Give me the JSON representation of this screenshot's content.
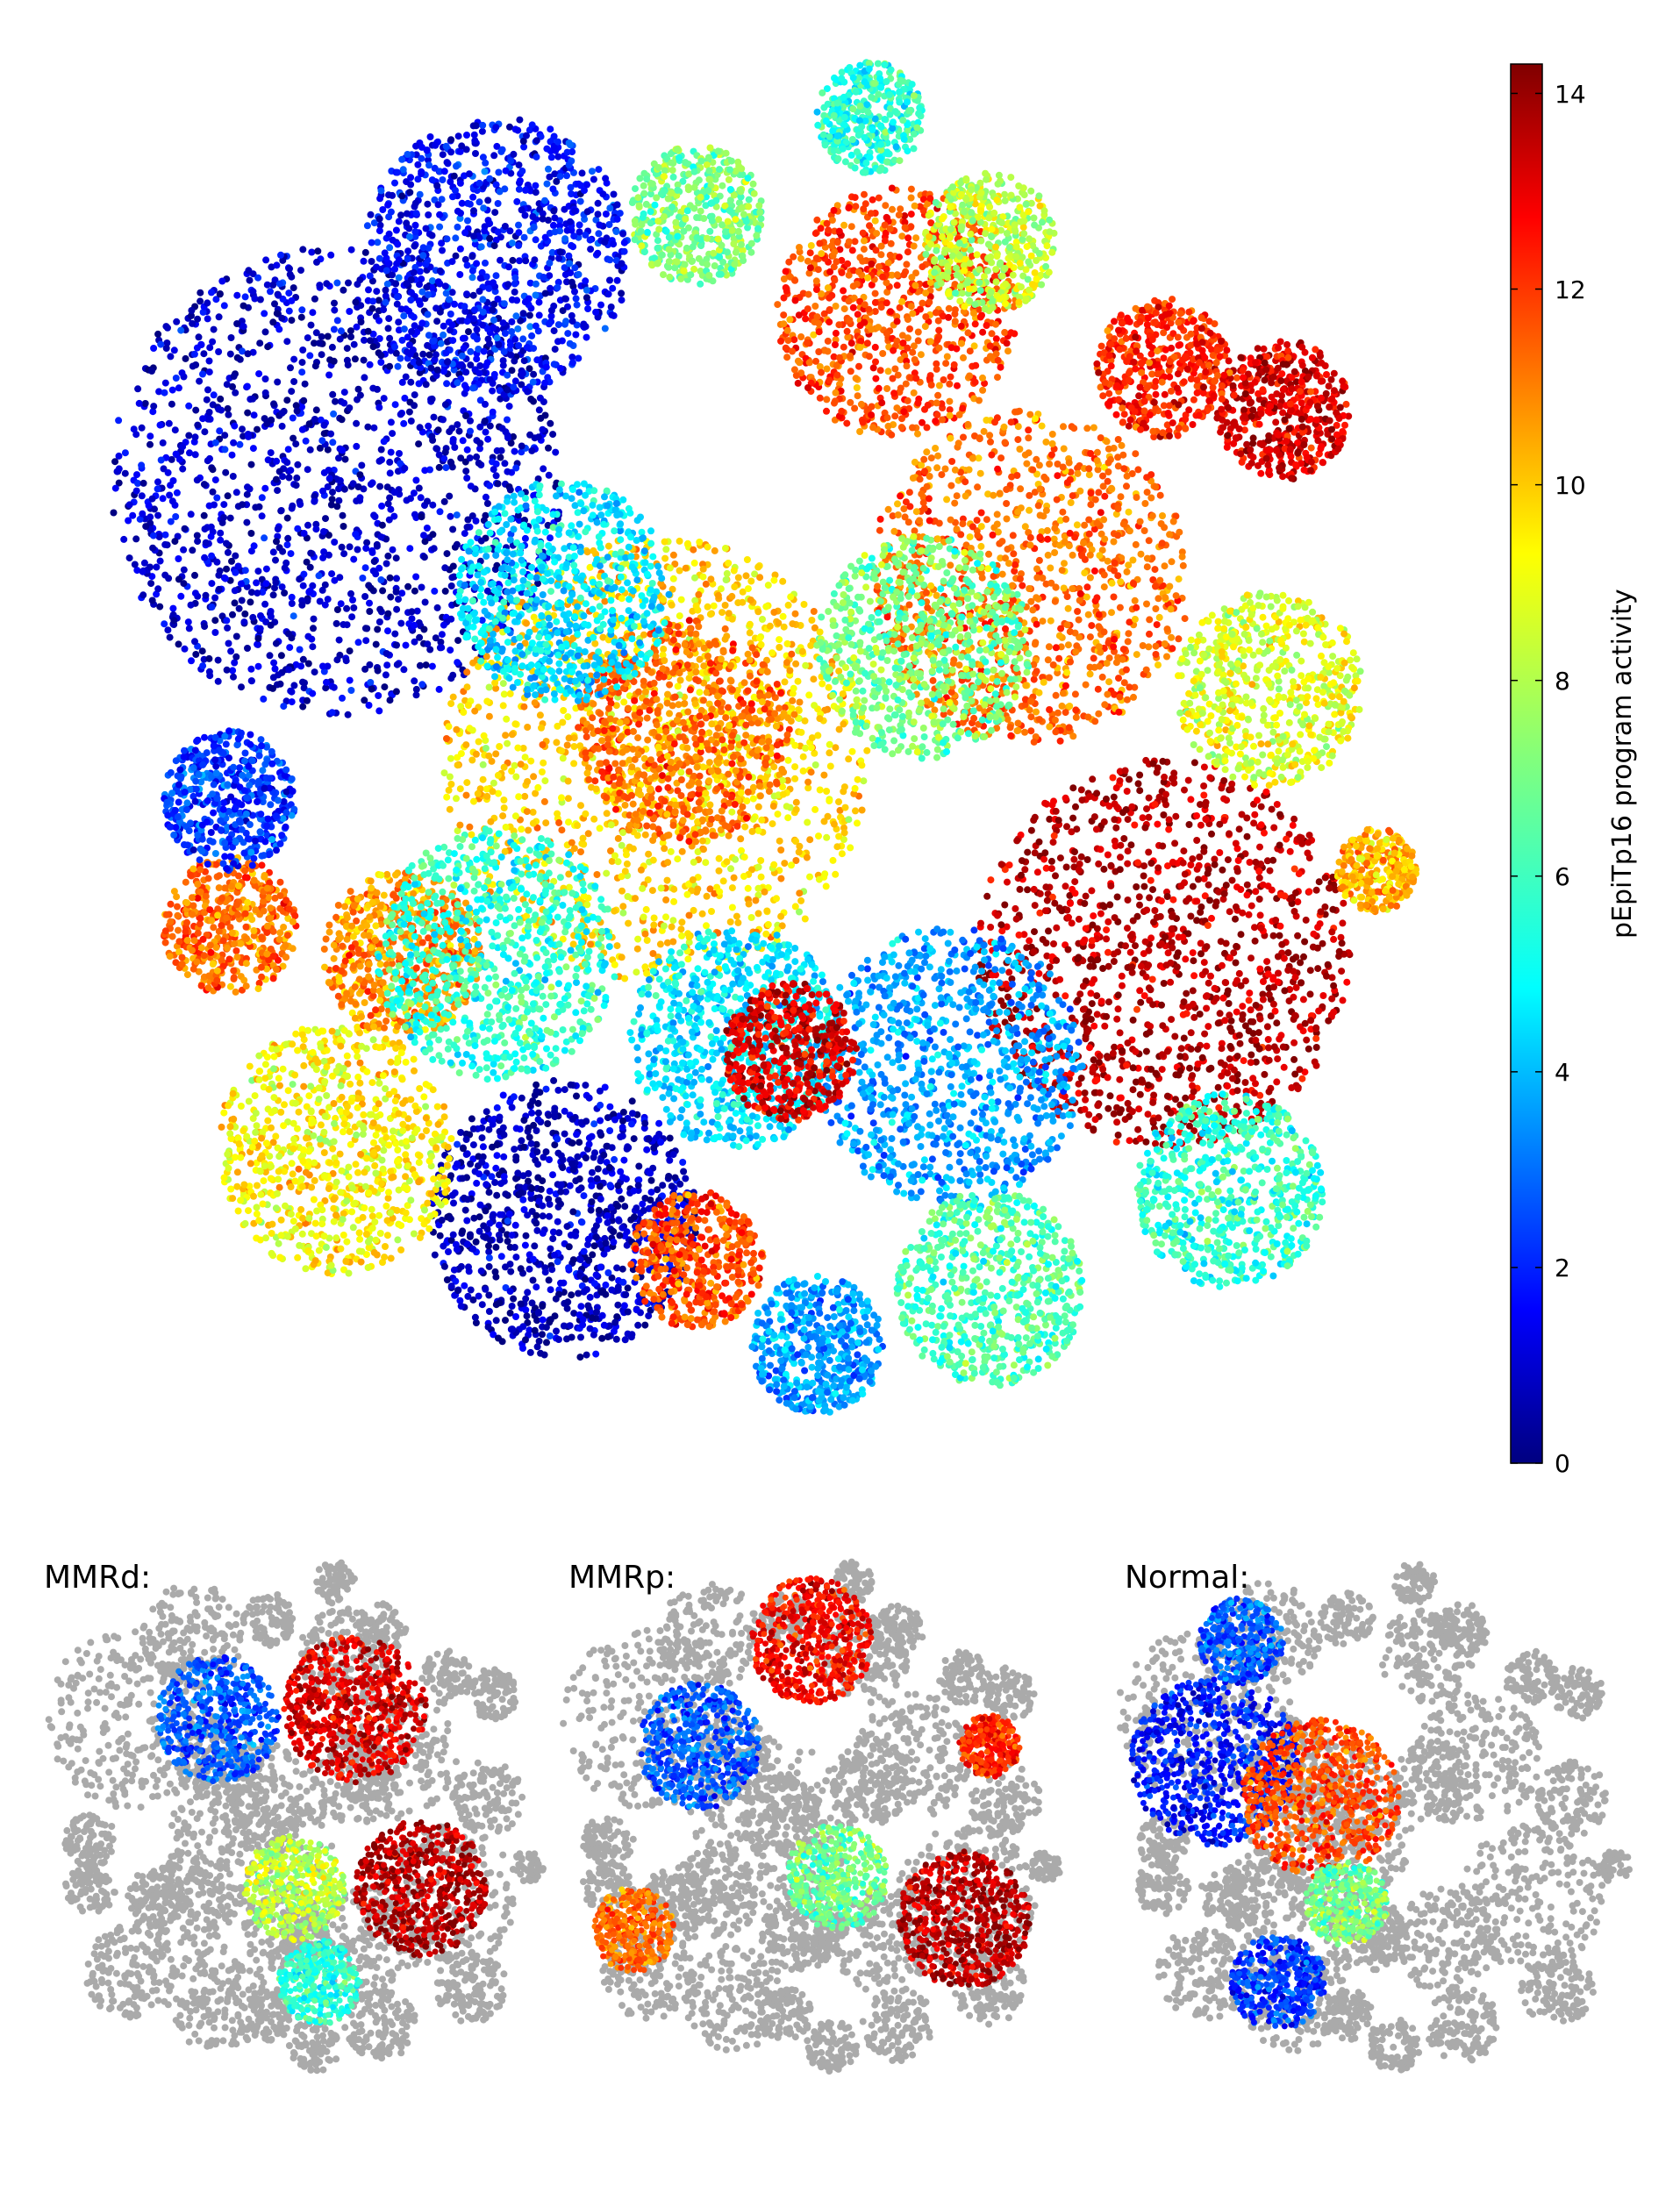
{
  "chart_data": [
    {
      "type": "scatter",
      "panel": "main",
      "title": "",
      "colorbar": {
        "label": "pEpiTp16 program activity",
        "colormap": "jet",
        "range": [
          0,
          14.3
        ],
        "ticks": [
          "0",
          "2",
          "4",
          "6",
          "8",
          "10",
          "12",
          "14"
        ],
        "tick_values": [
          0,
          2,
          4,
          6,
          8,
          10,
          12,
          14
        ]
      },
      "clusters": [
        {
          "cx": 0.18,
          "cy": 0.3,
          "r": 0.17,
          "value": 1.0
        },
        {
          "cx": 0.3,
          "cy": 0.14,
          "r": 0.1,
          "value": 1.8
        },
        {
          "cx": 0.42,
          "cy": 0.5,
          "r": 0.16,
          "value": 9.5
        },
        {
          "cx": 0.44,
          "cy": 0.48,
          "r": 0.08,
          "value": 11.0
        },
        {
          "cx": 0.6,
          "cy": 0.18,
          "r": 0.09,
          "value": 11.5
        },
        {
          "cx": 0.7,
          "cy": 0.37,
          "r": 0.12,
          "value": 11.0
        },
        {
          "cx": 0.62,
          "cy": 0.42,
          "r": 0.08,
          "value": 7.0
        },
        {
          "cx": 0.8,
          "cy": 0.64,
          "r": 0.14,
          "value": 13.5
        },
        {
          "cx": 0.64,
          "cy": 0.72,
          "r": 0.1,
          "value": 4.0
        },
        {
          "cx": 0.35,
          "cy": 0.83,
          "r": 0.1,
          "value": 0.8
        },
        {
          "cx": 0.18,
          "cy": 0.78,
          "r": 0.09,
          "value": 9.0
        },
        {
          "cx": 0.23,
          "cy": 0.64,
          "r": 0.06,
          "value": 10.5
        },
        {
          "cx": 0.3,
          "cy": 0.64,
          "r": 0.09,
          "value": 6.0
        },
        {
          "cx": 0.48,
          "cy": 0.7,
          "r": 0.08,
          "value": 5.0
        },
        {
          "cx": 0.52,
          "cy": 0.71,
          "r": 0.05,
          "value": 13.0
        },
        {
          "cx": 0.88,
          "cy": 0.45,
          "r": 0.07,
          "value": 8.5
        },
        {
          "cx": 0.89,
          "cy": 0.25,
          "r": 0.05,
          "value": 13.0
        },
        {
          "cx": 0.8,
          "cy": 0.22,
          "r": 0.05,
          "value": 12.0
        },
        {
          "cx": 0.67,
          "cy": 0.13,
          "r": 0.05,
          "value": 8.0
        },
        {
          "cx": 0.45,
          "cy": 0.11,
          "r": 0.05,
          "value": 7.0
        },
        {
          "cx": 0.58,
          "cy": 0.04,
          "r": 0.04,
          "value": 6.0
        },
        {
          "cx": 0.85,
          "cy": 0.81,
          "r": 0.07,
          "value": 6.0
        },
        {
          "cx": 0.67,
          "cy": 0.88,
          "r": 0.07,
          "value": 6.5
        },
        {
          "cx": 0.54,
          "cy": 0.92,
          "r": 0.05,
          "value": 4.0
        },
        {
          "cx": 0.45,
          "cy": 0.86,
          "r": 0.05,
          "value": 11.5
        },
        {
          "cx": 0.1,
          "cy": 0.62,
          "r": 0.05,
          "value": 11.0
        },
        {
          "cx": 0.1,
          "cy": 0.53,
          "r": 0.05,
          "value": 2.5
        },
        {
          "cx": 0.35,
          "cy": 0.38,
          "r": 0.08,
          "value": 5.0
        },
        {
          "cx": 0.96,
          "cy": 0.58,
          "r": 0.03,
          "value": 10.0
        }
      ]
    },
    {
      "type": "scatter",
      "panel": "MMRd",
      "title": "MMRd:",
      "highlight": [
        {
          "cx": 0.62,
          "cy": 0.28,
          "r": 0.14,
          "value": 13.0
        },
        {
          "cx": 0.75,
          "cy": 0.62,
          "r": 0.13,
          "value": 13.5
        },
        {
          "cx": 0.35,
          "cy": 0.3,
          "r": 0.12,
          "value": 3.0
        },
        {
          "cx": 0.5,
          "cy": 0.62,
          "r": 0.1,
          "value": 8.0
        },
        {
          "cx": 0.55,
          "cy": 0.8,
          "r": 0.08,
          "value": 6.0
        }
      ]
    },
    {
      "type": "scatter",
      "panel": "MMRp",
      "title": "MMRp:",
      "highlight": [
        {
          "cx": 0.5,
          "cy": 0.15,
          "r": 0.12,
          "value": 12.5
        },
        {
          "cx": 0.8,
          "cy": 0.68,
          "r": 0.13,
          "value": 13.5
        },
        {
          "cx": 0.28,
          "cy": 0.35,
          "r": 0.12,
          "value": 3.0
        },
        {
          "cx": 0.15,
          "cy": 0.7,
          "r": 0.08,
          "value": 11.0
        },
        {
          "cx": 0.55,
          "cy": 0.6,
          "r": 0.1,
          "value": 7.0
        },
        {
          "cx": 0.85,
          "cy": 0.35,
          "r": 0.06,
          "value": 12.0
        }
      ]
    },
    {
      "type": "scatter",
      "panel": "Normal",
      "title": "Normal:",
      "highlight": [
        {
          "cx": 0.2,
          "cy": 0.38,
          "r": 0.16,
          "value": 2.0
        },
        {
          "cx": 0.4,
          "cy": 0.45,
          "r": 0.15,
          "value": 11.5
        },
        {
          "cx": 0.32,
          "cy": 0.8,
          "r": 0.09,
          "value": 2.5
        },
        {
          "cx": 0.25,
          "cy": 0.15,
          "r": 0.08,
          "value": 3.0
        },
        {
          "cx": 0.45,
          "cy": 0.65,
          "r": 0.08,
          "value": 7.0
        }
      ]
    }
  ]
}
